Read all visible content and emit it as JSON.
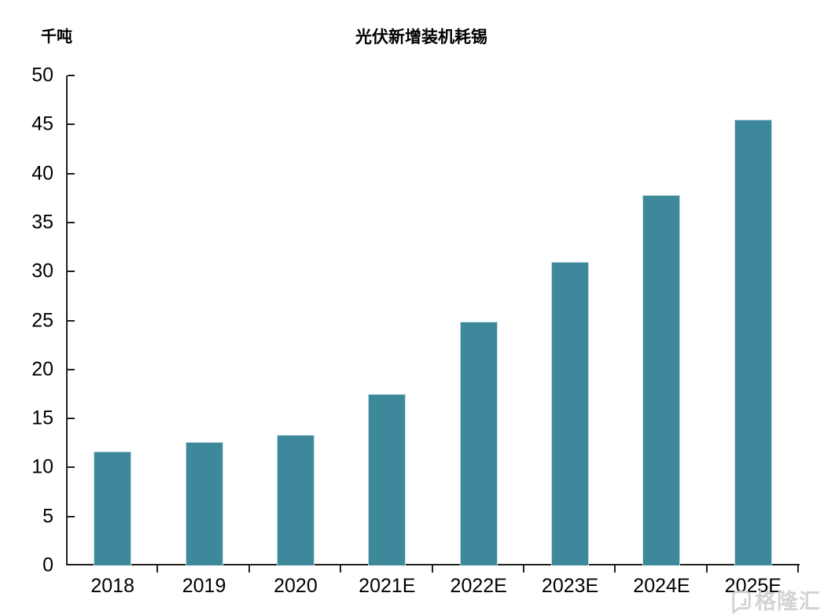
{
  "chart": {
    "title": "光伏新增装机耗锡",
    "unit_label": "千吨",
    "watermark_text": "格隆汇"
  },
  "chart_data": {
    "type": "bar",
    "title": "光伏新增装机耗锡",
    "xlabel": "",
    "ylabel": "千吨",
    "categories": [
      "2018",
      "2019",
      "2020",
      "2021E",
      "2022E",
      "2023E",
      "2024E",
      "2025E"
    ],
    "values": [
      11.6,
      12.6,
      13.3,
      17.5,
      24.9,
      31.0,
      37.8,
      45.5
    ],
    "ylim": [
      0,
      50
    ],
    "ytick_step": 5,
    "grid": false,
    "legend_position": "none",
    "bar_color": "#3d899b",
    "bar_edge_color": "#c5dce3",
    "axis_color": "#1f1f1f",
    "watermark_color": "#d3d3d3"
  }
}
